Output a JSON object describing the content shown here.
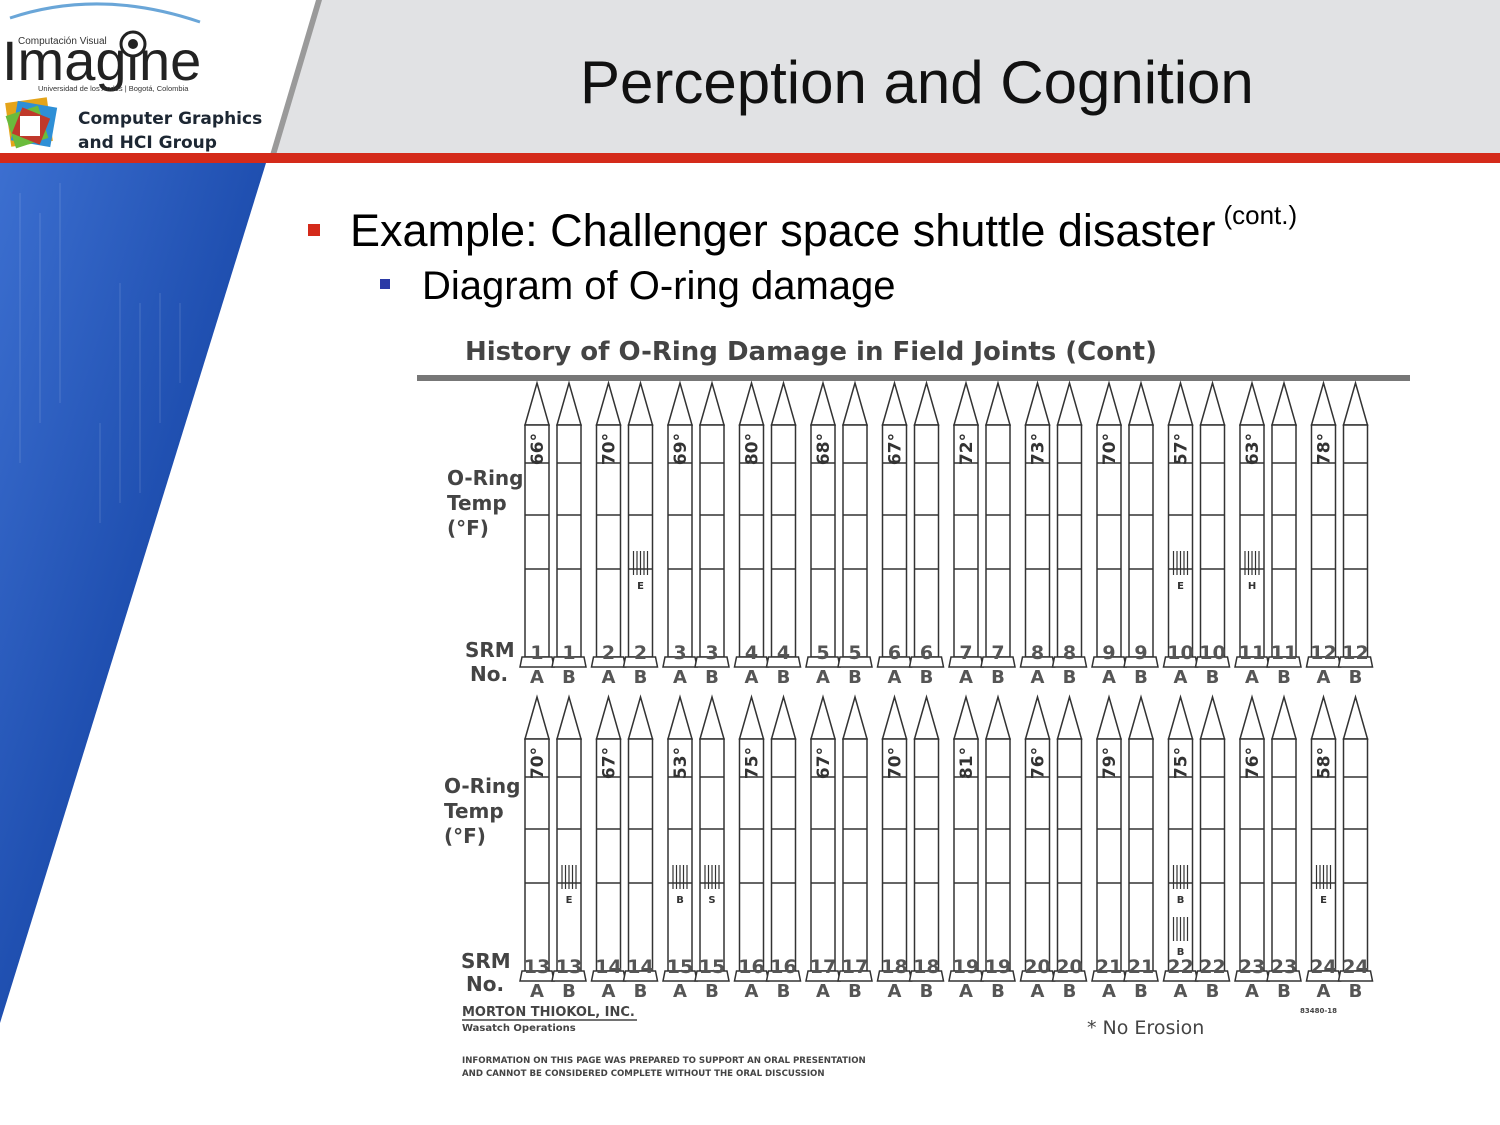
{
  "logo": {
    "top_line": "Computación Visual",
    "word": "Imagine",
    "university": "Universidad de los Andes | Bogotá, Colombia",
    "group_line1": "Computer Graphics",
    "group_line2": "and HCI Group"
  },
  "slide": {
    "title": "Perception and Cognition",
    "bullet_main": "Example: Challenger space shuttle disaster",
    "bullet_main_sup": "(cont.)",
    "bullet_sub": "Diagram of O-ring damage"
  },
  "figure": {
    "title": "History of O-Ring Damage in Field Joints (Cont)",
    "temp_label": [
      "O-Ring",
      "Temp",
      "(°F)"
    ],
    "srm_label": [
      "SRM",
      "No."
    ],
    "rows": [
      {
        "srm_numbers": [
          1,
          2,
          3,
          4,
          5,
          6,
          7,
          8,
          9,
          10,
          11,
          12
        ],
        "temps": [
          "66°",
          "70°",
          "69°",
          "80°",
          "68°",
          "67°",
          "72°",
          "73°",
          "70°",
          "57°",
          "63°",
          "78°"
        ],
        "damage": [
          {
            "srm": 2,
            "side": "B",
            "code": "E"
          },
          {
            "srm": 10,
            "side": "A",
            "code": "E"
          },
          {
            "srm": 11,
            "side": "A",
            "code": "H"
          }
        ]
      },
      {
        "srm_numbers": [
          13,
          14,
          15,
          16,
          17,
          18,
          19,
          20,
          21,
          22,
          23,
          24
        ],
        "temps": [
          "70°",
          "67°",
          "53°",
          "75°",
          "67°",
          "70°",
          "81°",
          "76°",
          "79°",
          "75°",
          "76°",
          "58°"
        ],
        "damage": [
          {
            "srm": 13,
            "side": "B",
            "code": "E"
          },
          {
            "srm": 15,
            "side": "A",
            "code": "B"
          },
          {
            "srm": 15,
            "side": "B",
            "code": "S"
          },
          {
            "srm": 22,
            "side": "A",
            "code": "B"
          },
          {
            "srm": 22,
            "side": "A",
            "code": "B"
          },
          {
            "srm": 24,
            "side": "A",
            "code": "E"
          }
        ]
      }
    ],
    "sides": [
      "A",
      "B"
    ],
    "company": "MORTON THIOKOL, INC.",
    "division": "Wasatch Operations",
    "legend": "* No Erosion",
    "doc_number": "83480-18",
    "disclaimer_line1": "INFORMATION ON THIS PAGE WAS PREPARED TO SUPPORT AN ORAL PRESENTATION",
    "disclaimer_line2": "AND CANNOT BE CONSIDERED COMPLETE WITHOUT THE ORAL DISCUSSION"
  },
  "colors": {
    "accent_red": "#d42a1a",
    "sub_bullet_blue": "#2b3aa6",
    "panel_blue": "#1f4fb0",
    "header_gray": "#e1e2e4"
  }
}
